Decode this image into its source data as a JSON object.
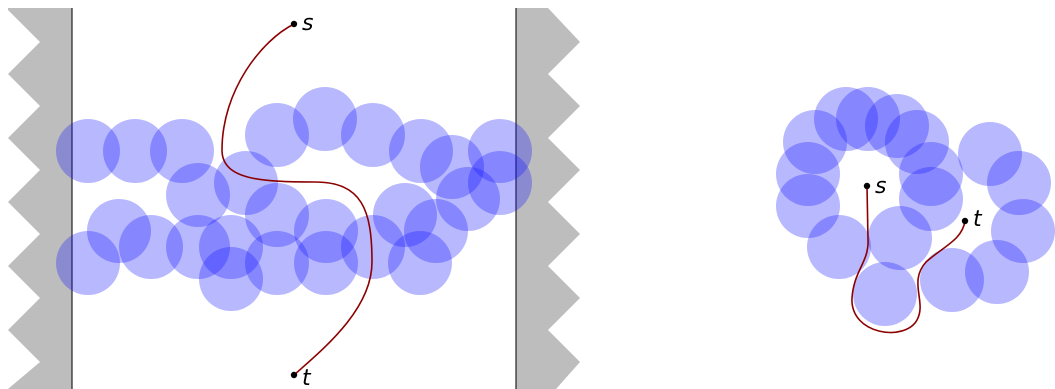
{
  "colors": {
    "wall": "#bdbdbd",
    "disk": "#1414ff",
    "path": "#8b0000",
    "point": "#000000"
  },
  "panels": [
    {
      "name": "left-panel",
      "has_walls": true,
      "disk_count": 27,
      "start_label": "s",
      "end_label": "t"
    },
    {
      "name": "right-panel",
      "has_walls": false,
      "disk_count": 17,
      "start_label": "s",
      "end_label": "t"
    }
  ]
}
